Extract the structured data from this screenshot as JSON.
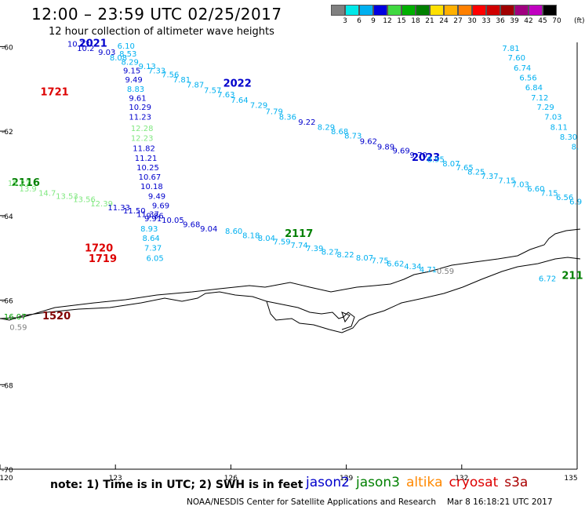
{
  "header": {
    "title": "12:00 – 23:59 UTC 02/25/2017",
    "subtitle": "12 hour collection of altimeter wave heights"
  },
  "color_scale": {
    "unit": "(ft)",
    "labels": [
      "3",
      "6",
      "9",
      "12",
      "15",
      "18",
      "21",
      "24",
      "27",
      "30",
      "33",
      "36",
      "39",
      "42",
      "45",
      "70"
    ],
    "colors": [
      "#808080",
      "#00e8e8",
      "#00b0f0",
      "#0000e0",
      "#40d840",
      "#00b000",
      "#008000",
      "#ffe000",
      "#ffb000",
      "#ff8000",
      "#ff0000",
      "#d00000",
      "#a00000",
      "#a00080",
      "#c000c0",
      "#000000"
    ]
  },
  "chart_data": {
    "type": "scatter",
    "title": "12:00 – 23:59 UTC 02/25/2017",
    "subtitle": "12 hour collection of altimeter wave heights",
    "xlabel": "",
    "ylabel": "",
    "x_ticks": [
      "120",
      "123",
      "126",
      "129",
      "132",
      "135"
    ],
    "y_ticks": [
      "-60",
      "-62",
      "-64",
      "-66",
      "-68",
      "-70"
    ],
    "xlim": [
      120,
      135
    ],
    "ylim": [
      -70,
      -59.9
    ],
    "grid": false,
    "track_labels": [
      {
        "text": "2021",
        "lon": 122.05,
        "lat": -60.0,
        "color": "#0000cc"
      },
      {
        "text": "2022",
        "lon": 125.8,
        "lat": -60.95,
        "color": "#0000cc"
      },
      {
        "text": "1721",
        "lon": 121.05,
        "lat": -61.15,
        "color": "#dd0000"
      },
      {
        "text": "2023",
        "lon": 130.7,
        "lat": -62.7,
        "color": "#0000cc"
      },
      {
        "text": "2116",
        "lon": 120.3,
        "lat": -63.3,
        "color": "#008000"
      },
      {
        "text": "2117",
        "lon": 127.4,
        "lat": -64.5,
        "color": "#008000"
      },
      {
        "text": "1720",
        "lon": 122.2,
        "lat": -64.85,
        "color": "#dd0000"
      },
      {
        "text": "1719",
        "lon": 122.3,
        "lat": -65.1,
        "color": "#dd0000"
      },
      {
        "text": "1520",
        "lon": 121.1,
        "lat": -66.45,
        "color": "#800000"
      },
      {
        "text": "211",
        "lon": 134.6,
        "lat": -65.5,
        "color": "#008000"
      }
    ],
    "points": [
      {
        "text": "10.73",
        "lon": 121.75,
        "lat": -60.0,
        "color": "#0000cc"
      },
      {
        "text": "10.2",
        "lon": 122.0,
        "lat": -60.1,
        "color": "#0000cc"
      },
      {
        "text": "6.10",
        "lon": 123.05,
        "lat": -60.05,
        "color": "#00b0f0"
      },
      {
        "text": "9.03",
        "lon": 122.55,
        "lat": -60.2,
        "color": "#0000cc"
      },
      {
        "text": "8.53",
        "lon": 123.1,
        "lat": -60.23,
        "color": "#00b0f0"
      },
      {
        "text": "8.08",
        "lon": 122.85,
        "lat": -60.33,
        "color": "#00b0f0"
      },
      {
        "text": "8.29",
        "lon": 123.15,
        "lat": -60.43,
        "color": "#00b0f0"
      },
      {
        "text": "9.13",
        "lon": 123.6,
        "lat": -60.53,
        "color": "#00b0f0"
      },
      {
        "text": "7.33",
        "lon": 123.85,
        "lat": -60.63,
        "color": "#00b0f0"
      },
      {
        "text": "9.15",
        "lon": 123.2,
        "lat": -60.63,
        "color": "#0000cc"
      },
      {
        "text": "7.56",
        "lon": 124.2,
        "lat": -60.73,
        "color": "#00b0f0"
      },
      {
        "text": "7.81",
        "lon": 124.5,
        "lat": -60.85,
        "color": "#00b0f0"
      },
      {
        "text": "9.49",
        "lon": 123.25,
        "lat": -60.85,
        "color": "#0000cc"
      },
      {
        "text": "7.87",
        "lon": 124.85,
        "lat": -60.97,
        "color": "#00b0f0"
      },
      {
        "text": "7.57",
        "lon": 125.3,
        "lat": -61.1,
        "color": "#00b0f0"
      },
      {
        "text": "7.63",
        "lon": 125.65,
        "lat": -61.2,
        "color": "#00b0f0"
      },
      {
        "text": "8.83",
        "lon": 123.3,
        "lat": -61.07,
        "color": "#00b0f0"
      },
      {
        "text": "9.61",
        "lon": 123.35,
        "lat": -61.28,
        "color": "#0000cc"
      },
      {
        "text": "7.64",
        "lon": 126.0,
        "lat": -61.33,
        "color": "#00b0f0"
      },
      {
        "text": "10.29",
        "lon": 123.35,
        "lat": -61.5,
        "color": "#0000cc"
      },
      {
        "text": "7.29",
        "lon": 126.5,
        "lat": -61.45,
        "color": "#00b0f0"
      },
      {
        "text": "7.79",
        "lon": 126.9,
        "lat": -61.6,
        "color": "#00b0f0"
      },
      {
        "text": "8.36",
        "lon": 127.25,
        "lat": -61.73,
        "color": "#00b0f0"
      },
      {
        "text": "11.23",
        "lon": 123.35,
        "lat": -61.73,
        "color": "#0000cc"
      },
      {
        "text": "9.22",
        "lon": 127.75,
        "lat": -61.85,
        "color": "#0000cc"
      },
      {
        "text": "8.29",
        "lon": 128.25,
        "lat": -61.97,
        "color": "#00b0f0"
      },
      {
        "text": "12.28",
        "lon": 123.4,
        "lat": -62.0,
        "color": "#80e880"
      },
      {
        "text": "8.68",
        "lon": 128.6,
        "lat": -62.07,
        "color": "#00b0f0"
      },
      {
        "text": "8.73",
        "lon": 128.95,
        "lat": -62.17,
        "color": "#00b0f0"
      },
      {
        "text": "12.23",
        "lon": 123.4,
        "lat": -62.23,
        "color": "#80e880"
      },
      {
        "text": "9.62",
        "lon": 129.35,
        "lat": -62.3,
        "color": "#0000cc"
      },
      {
        "text": "11.82",
        "lon": 123.45,
        "lat": -62.47,
        "color": "#0000cc"
      },
      {
        "text": "9.89",
        "lon": 129.8,
        "lat": -62.43,
        "color": "#0000cc"
      },
      {
        "text": "9.69",
        "lon": 130.2,
        "lat": -62.53,
        "color": "#0000cc"
      },
      {
        "text": "9.70",
        "lon": 130.65,
        "lat": -62.63,
        "color": "#0000cc"
      },
      {
        "text": "8.95",
        "lon": 131.1,
        "lat": -62.73,
        "color": "#00b0f0"
      },
      {
        "text": "11.21",
        "lon": 123.5,
        "lat": -62.7,
        "color": "#0000cc"
      },
      {
        "text": "8.07",
        "lon": 131.5,
        "lat": -62.83,
        "color": "#00b0f0"
      },
      {
        "text": "7.65",
        "lon": 131.85,
        "lat": -62.93,
        "color": "#00b0f0"
      },
      {
        "text": "8.25",
        "lon": 132.15,
        "lat": -63.03,
        "color": "#00b0f0"
      },
      {
        "text": "10.25",
        "lon": 123.55,
        "lat": -62.93,
        "color": "#0000cc"
      },
      {
        "text": "7.37",
        "lon": 132.5,
        "lat": -63.13,
        "color": "#00b0f0"
      },
      {
        "text": "7.15",
        "lon": 132.95,
        "lat": -63.23,
        "color": "#00b0f0"
      },
      {
        "text": "10.67",
        "lon": 123.6,
        "lat": -63.15,
        "color": "#0000cc"
      },
      {
        "text": "7.03",
        "lon": 133.3,
        "lat": -63.33,
        "color": "#00b0f0"
      },
      {
        "text": "6.60",
        "lon": 133.7,
        "lat": -63.43,
        "color": "#00b0f0"
      },
      {
        "text": "10.18",
        "lon": 123.65,
        "lat": -63.37,
        "color": "#0000cc"
      },
      {
        "text": "7.15",
        "lon": 134.05,
        "lat": -63.53,
        "color": "#00b0f0"
      },
      {
        "text": "6.56",
        "lon": 134.45,
        "lat": -63.63,
        "color": "#00b0f0"
      },
      {
        "text": "6.9",
        "lon": 134.8,
        "lat": -63.73,
        "color": "#00b0f0"
      },
      {
        "text": "9.49",
        "lon": 123.85,
        "lat": -63.6,
        "color": "#0000cc"
      },
      {
        "text": "9.69",
        "lon": 123.95,
        "lat": -63.83,
        "color": "#0000cc"
      },
      {
        "text": "15.27",
        "lon": 120.2,
        "lat": -63.3,
        "color": "#80e880"
      },
      {
        "text": "13.9",
        "lon": 120.5,
        "lat": -63.43,
        "color": "#80e880"
      },
      {
        "text": "14.7",
        "lon": 121.0,
        "lat": -63.53,
        "color": "#80e880"
      },
      {
        "text": "13.53",
        "lon": 121.45,
        "lat": -63.6,
        "color": "#80e880"
      },
      {
        "text": "13.56",
        "lon": 121.9,
        "lat": -63.68,
        "color": "#80e880"
      },
      {
        "text": "12.39",
        "lon": 122.35,
        "lat": -63.78,
        "color": "#80e880"
      },
      {
        "text": "11.33",
        "lon": 122.8,
        "lat": -63.87,
        "color": "#0000cc"
      },
      {
        "text": "11.50",
        "lon": 123.2,
        "lat": -63.95,
        "color": "#0000cc"
      },
      {
        "text": "11.37",
        "lon": 123.55,
        "lat": -64.03,
        "color": "#0000cc"
      },
      {
        "text": "9.86",
        "lon": 123.8,
        "lat": -64.07,
        "color": "#0000cc"
      },
      {
        "text": "9.91",
        "lon": 123.75,
        "lat": -64.13,
        "color": "#0000cc"
      },
      {
        "text": "10.05",
        "lon": 124.2,
        "lat": -64.17,
        "color": "#0000cc"
      },
      {
        "text": "9.68",
        "lon": 124.75,
        "lat": -64.27,
        "color": "#0000cc"
      },
      {
        "text": "9.04",
        "lon": 125.2,
        "lat": -64.37,
        "color": "#0000cc"
      },
      {
        "text": "8.93",
        "lon": 123.65,
        "lat": -64.37,
        "color": "#00b0f0"
      },
      {
        "text": "8.60",
        "lon": 125.85,
        "lat": -64.43,
        "color": "#00b0f0"
      },
      {
        "text": "8.18",
        "lon": 126.3,
        "lat": -64.53,
        "color": "#00b0f0"
      },
      {
        "text": "8.64",
        "lon": 123.7,
        "lat": -64.6,
        "color": "#00b0f0"
      },
      {
        "text": "8.04",
        "lon": 126.7,
        "lat": -64.6,
        "color": "#00b0f0"
      },
      {
        "text": "7.59",
        "lon": 127.1,
        "lat": -64.68,
        "color": "#00b0f0"
      },
      {
        "text": "7.74",
        "lon": 127.55,
        "lat": -64.76,
        "color": "#00b0f0"
      },
      {
        "text": "7.39",
        "lon": 127.95,
        "lat": -64.84,
        "color": "#00b0f0"
      },
      {
        "text": "7.37",
        "lon": 123.75,
        "lat": -64.83,
        "color": "#00b0f0"
      },
      {
        "text": "8.27",
        "lon": 128.35,
        "lat": -64.92,
        "color": "#00b0f0"
      },
      {
        "text": "8.22",
        "lon": 128.75,
        "lat": -64.99,
        "color": "#00b0f0"
      },
      {
        "text": "8.07",
        "lon": 129.25,
        "lat": -65.06,
        "color": "#00b0f0"
      },
      {
        "text": "6.05",
        "lon": 123.8,
        "lat": -65.07,
        "color": "#00b0f0"
      },
      {
        "text": "7.75",
        "lon": 129.65,
        "lat": -65.13,
        "color": "#00b0f0"
      },
      {
        "text": "6.62",
        "lon": 130.05,
        "lat": -65.2,
        "color": "#00b0f0"
      },
      {
        "text": "4.34",
        "lon": 130.5,
        "lat": -65.27,
        "color": "#00b0f0"
      },
      {
        "text": "4.71",
        "lon": 130.9,
        "lat": -65.34,
        "color": "#00b0f0"
      },
      {
        "text": "0.59",
        "lon": 131.35,
        "lat": -65.38,
        "color": "#808080"
      },
      {
        "text": "7.81",
        "lon": 133.05,
        "lat": -60.1,
        "color": "#00b0f0"
      },
      {
        "text": "7.60",
        "lon": 133.2,
        "lat": -60.33,
        "color": "#00b0f0"
      },
      {
        "text": "6.74",
        "lon": 133.35,
        "lat": -60.57,
        "color": "#00b0f0"
      },
      {
        "text": "6.56",
        "lon": 133.5,
        "lat": -60.8,
        "color": "#00b0f0"
      },
      {
        "text": "6.84",
        "lon": 133.65,
        "lat": -61.03,
        "color": "#00b0f0"
      },
      {
        "text": "7.12",
        "lon": 133.8,
        "lat": -61.27,
        "color": "#00b0f0"
      },
      {
        "text": "7.29",
        "lon": 133.95,
        "lat": -61.5,
        "color": "#00b0f0"
      },
      {
        "text": "7.03",
        "lon": 134.15,
        "lat": -61.73,
        "color": "#00b0f0"
      },
      {
        "text": "8.11",
        "lon": 134.3,
        "lat": -61.97,
        "color": "#00b0f0"
      },
      {
        "text": "8.30",
        "lon": 134.55,
        "lat": -62.2,
        "color": "#00b0f0"
      },
      {
        "text": "8.",
        "lon": 134.85,
        "lat": -62.43,
        "color": "#00b0f0"
      },
      {
        "text": "6.72",
        "lon": 134.0,
        "lat": -65.55,
        "color": "#00b0f0"
      },
      {
        "text": "16.07",
        "lon": 120.1,
        "lat": -66.45,
        "color": "#00a000"
      },
      {
        "text": "0.59",
        "lon": 120.25,
        "lat": -66.7,
        "color": "#808080"
      }
    ]
  },
  "footer": {
    "note": "note: 1) Time is in UTC; 2) SWH is in feet",
    "credit": "NOAA/NESDIS Center for Satellite Applications and Research",
    "date": "Mar  8 16:18:21 UTC 2017"
  },
  "legend": [
    {
      "name": "jason2",
      "color": "#0000cc"
    },
    {
      "name": "jason3",
      "color": "#008000"
    },
    {
      "name": "altika",
      "color": "#ff8800"
    },
    {
      "name": "cryosat",
      "color": "#dd0000"
    },
    {
      "name": "s3a",
      "color": "#aa0000"
    }
  ]
}
